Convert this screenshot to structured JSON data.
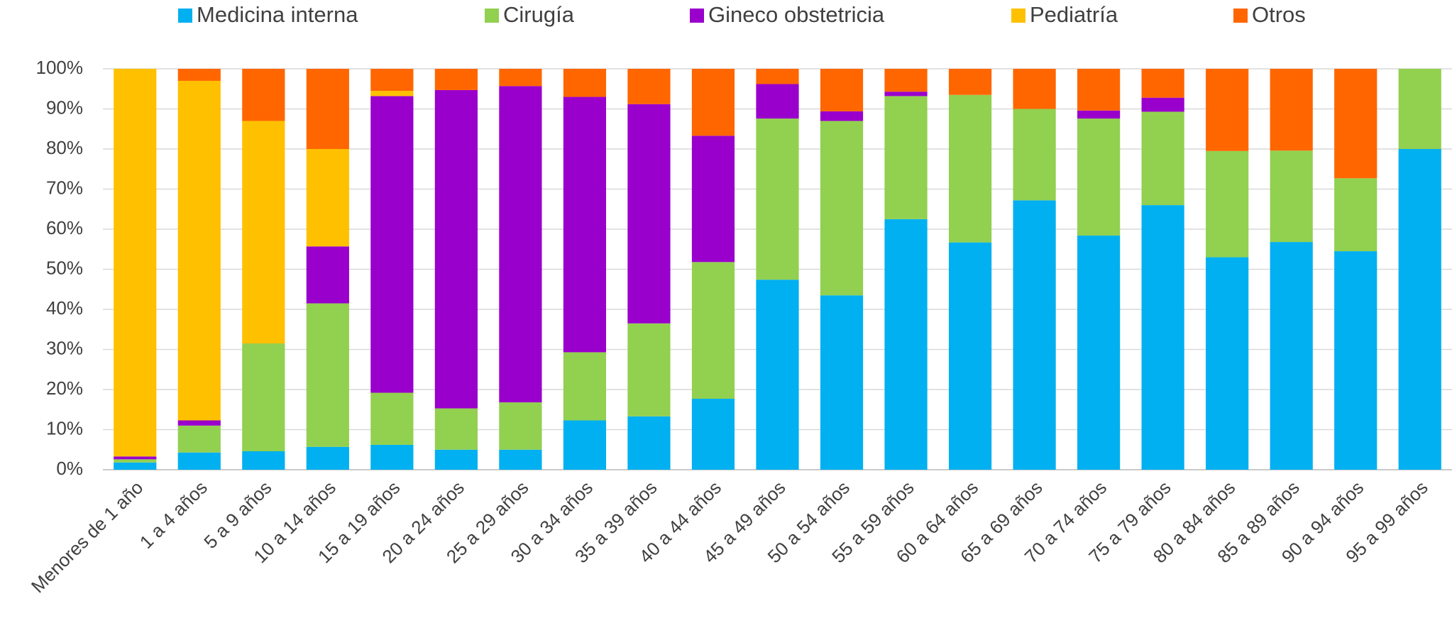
{
  "chart_data": {
    "type": "stacked_bar_100",
    "categories": [
      "Menores de 1 año",
      "1 a 4 años",
      "5 a 9 años",
      "10 a 14 años",
      "15 a 19 años",
      "20 a 24 años",
      "25 a 29 años",
      "30 a 34 años",
      "35 a 39 años",
      "40 a 44 años",
      "45 a 49 años",
      "50 a 54 años",
      "55 a 59 años",
      "60 a 64 años",
      "65 a 69 años",
      "70 a 74 años",
      "75 a 79 años",
      "80 a 84 años",
      "85 a 89 años",
      "90 a 94 años",
      "95 a 99 años"
    ],
    "series": [
      {
        "name": "Medicina interna",
        "color": "#00b0f0",
        "values": [
          1.8,
          4.3,
          4.6,
          5.7,
          6.2,
          5,
          5,
          12.3,
          13.3,
          17.7,
          47.4,
          43.5,
          62.5,
          56.7,
          67.2,
          58.4,
          66,
          53,
          56.8,
          54.5,
          80
        ]
      },
      {
        "name": "Cirugía",
        "color": "#92d050",
        "values": [
          0.8,
          6.7,
          26.9,
          35.8,
          13,
          10.3,
          11.8,
          17,
          23.2,
          34.1,
          40.2,
          43.5,
          30.7,
          36.8,
          22.8,
          29.2,
          23.3,
          26.5,
          22.8,
          18.2,
          20
        ]
      },
      {
        "name": "Gineco obstetricia",
        "color": "#9900cc",
        "values": [
          0.7,
          1.3,
          0,
          14.2,
          74,
          79.4,
          78.9,
          63.7,
          54.7,
          31.5,
          8.6,
          2.4,
          1.1,
          0,
          0,
          2,
          3.5,
          0,
          0,
          0,
          0
        ]
      },
      {
        "name": "Pediatría",
        "color": "#ffc000",
        "values": [
          96.7,
          84.7,
          55.5,
          24.3,
          1.3,
          0,
          0,
          0,
          0,
          0,
          0,
          0,
          0,
          0,
          0,
          0,
          0,
          0,
          0,
          0,
          0
        ]
      },
      {
        "name": "Otros",
        "color": "#ff6600",
        "values": [
          0,
          3,
          13,
          20,
          5.5,
          5.3,
          4.3,
          7,
          8.8,
          16.7,
          3.8,
          10.6,
          5.7,
          6.5,
          10,
          10.4,
          7.2,
          20.5,
          20.4,
          27.3,
          0
        ]
      }
    ],
    "ylim": [
      0,
      100
    ],
    "yticks": [
      {
        "value": 0,
        "label": "0%"
      },
      {
        "value": 10,
        "label": "10%"
      },
      {
        "value": 20,
        "label": "20%"
      },
      {
        "value": 30,
        "label": "30%"
      },
      {
        "value": 40,
        "label": "40%"
      },
      {
        "value": 50,
        "label": "50%"
      },
      {
        "value": 60,
        "label": "60%"
      },
      {
        "value": 70,
        "label": "70%"
      },
      {
        "value": 80,
        "label": "80%"
      },
      {
        "value": 90,
        "label": "90%"
      },
      {
        "value": 100,
        "label": "100%"
      }
    ],
    "grid": true,
    "legend": "top"
  }
}
